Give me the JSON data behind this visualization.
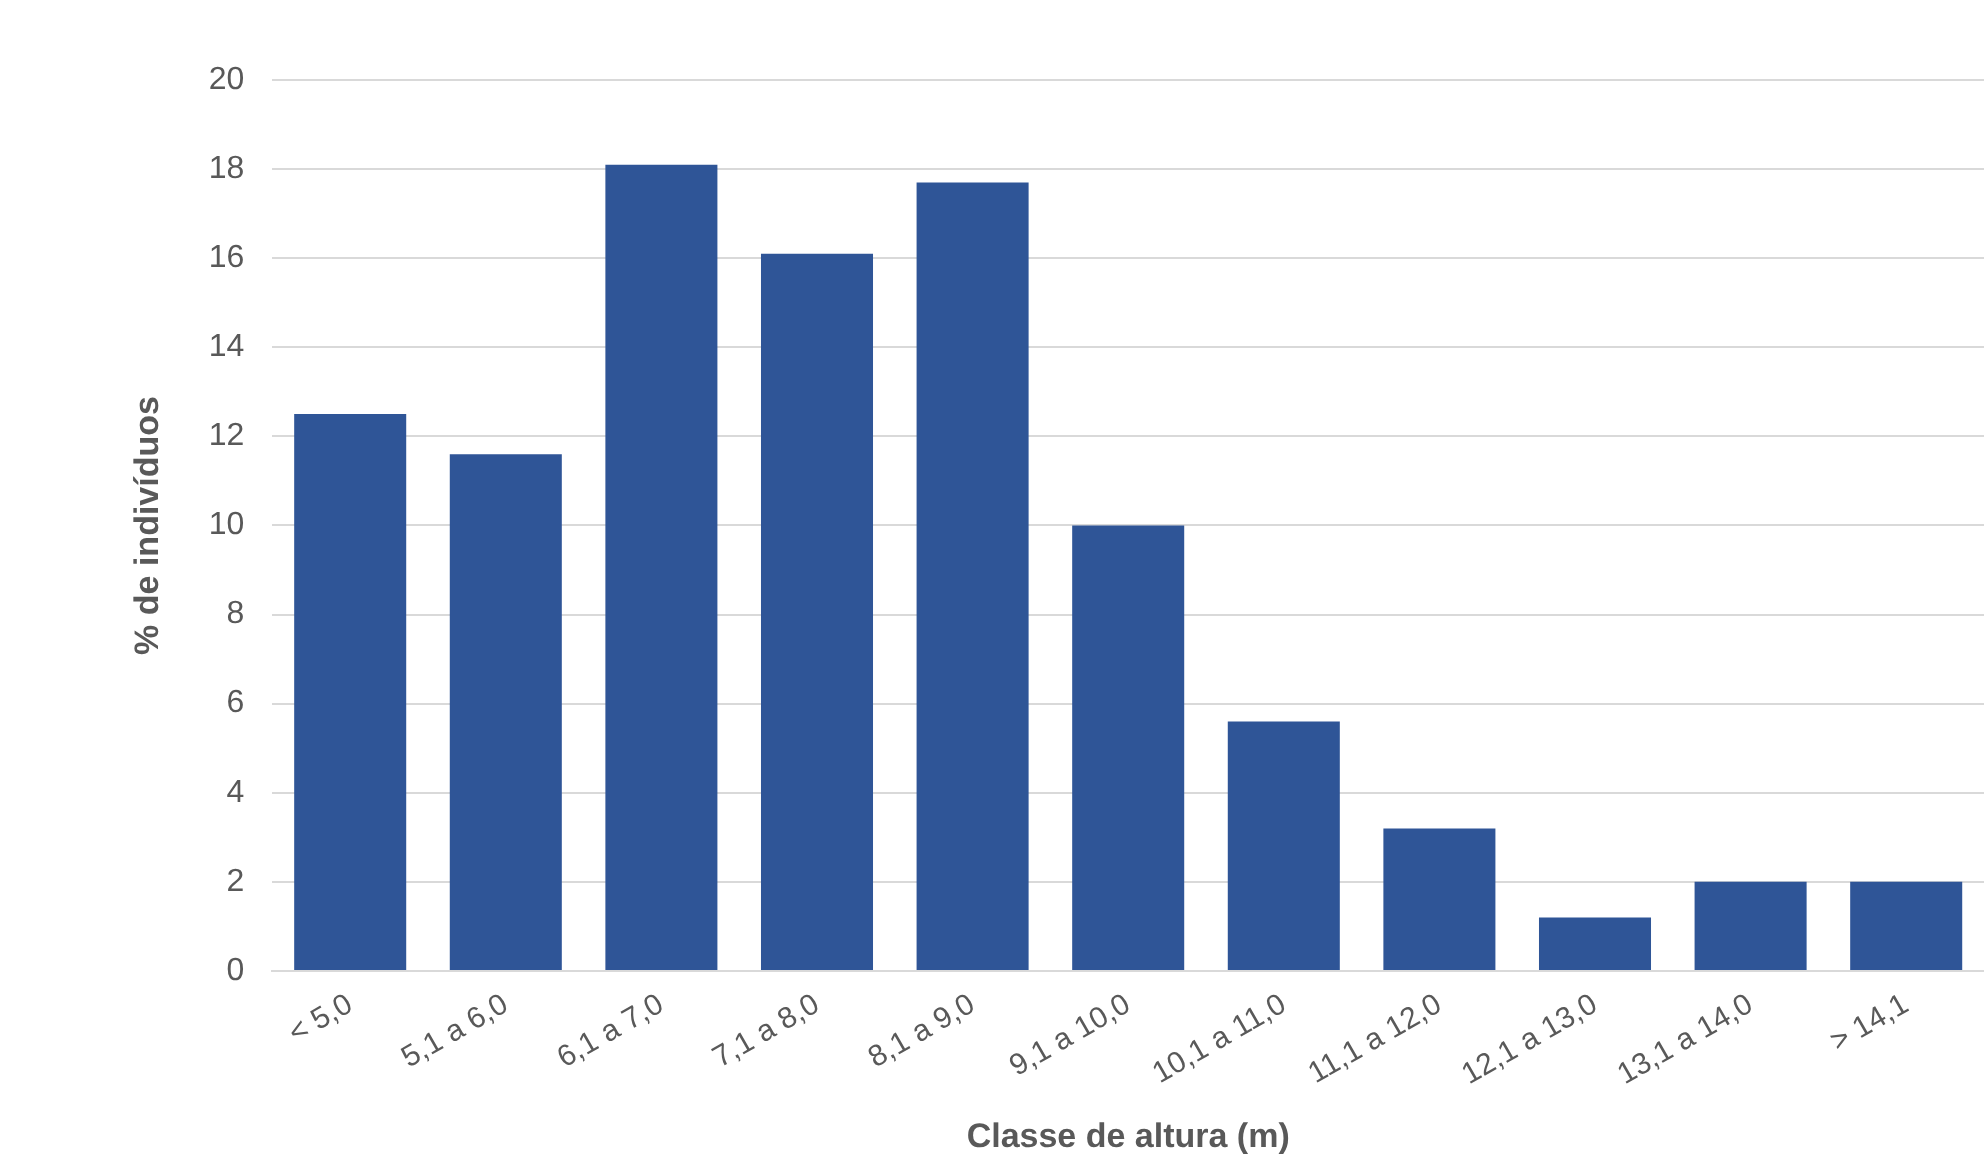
{
  "chart_data": {
    "type": "bar",
    "xlabel": "Classe de altura (m)",
    "ylabel": "% de indivíduos",
    "categories": [
      "< 5,0",
      "5,1 a 6,0",
      "6,1 a 7,0",
      "7,1 a 8,0",
      "8,1 a 9,0",
      "9,1 a 10,0",
      "10,1 a 11,0",
      "11,1 a 12,0",
      "12,1 a 13,0",
      "13,1 a 14,0",
      "> 14,1"
    ],
    "values": [
      12.5,
      11.6,
      18.1,
      16.1,
      17.7,
      10.0,
      5.6,
      3.2,
      1.2,
      2.0,
      2.0
    ],
    "color": "#2f5597",
    "ylim": [
      0,
      20
    ],
    "yticks": [
      0,
      2,
      4,
      6,
      8,
      10,
      12,
      14,
      16,
      18,
      20
    ],
    "grid": "y",
    "legend": false
  }
}
